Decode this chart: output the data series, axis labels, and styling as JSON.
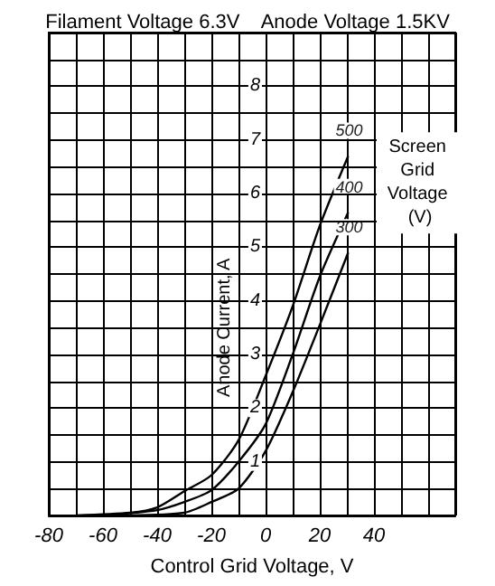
{
  "chart_data": {
    "type": "line",
    "title": "Filament Voltage 6.3V    Anode Voltage 1.5KV",
    "xlabel": "Control Grid Voltage, V",
    "ylabel": "Anode Current, A",
    "legend_title": "Screen Grid Voltage (V)",
    "xlim": [
      -80,
      70
    ],
    "ylim": [
      0,
      9
    ],
    "xticks": [
      -80,
      {
        "value": -70,
        "label": null
      },
      -60,
      {
        "value": -50,
        "label": null
      },
      -40,
      {
        "value": -30,
        "label": null
      },
      -20,
      {
        "value": -10,
        "label": null
      },
      0,
      {
        "value": 10,
        "label": null
      },
      20,
      {
        "value": 30,
        "label": null
      },
      40,
      {
        "value": 50,
        "label": null
      },
      {
        "value": 60,
        "label": null
      },
      {
        "value": 70,
        "label": null
      }
    ],
    "yticks": [
      {
        "value": 0,
        "label": null
      },
      {
        "value": 0.5,
        "label": null
      },
      1,
      {
        "value": 1.5,
        "label": null
      },
      2,
      {
        "value": 2.5,
        "label": null
      },
      3,
      {
        "value": 3.5,
        "label": null
      },
      4,
      {
        "value": 4.5,
        "label": null
      },
      5,
      {
        "value": 5.5,
        "label": null
      },
      6,
      {
        "value": 6.5,
        "label": null
      },
      7,
      {
        "value": 7.5,
        "label": null
      },
      8,
      {
        "value": 8.5,
        "label": null
      },
      {
        "value": 9,
        "label": null
      }
    ],
    "grid": true,
    "legend": false,
    "marker": "none",
    "line_style": "solid",
    "series": [
      {
        "name": "500",
        "color": "#000000",
        "x": [
          -70,
          -50,
          -40,
          -30,
          -20,
          -10,
          0,
          10,
          20,
          30.5
        ],
        "values": [
          0,
          0.05,
          0.15,
          0.45,
          0.75,
          1.4,
          2.6,
          3.9,
          5.4,
          6.7
        ]
      },
      {
        "name": "400",
        "color": "#000000",
        "x": [
          -60,
          -40,
          -30,
          -20,
          -10,
          0,
          10,
          20,
          30.5
        ],
        "values": [
          0,
          0.1,
          0.25,
          0.47,
          1.0,
          1.7,
          3.0,
          4.45,
          5.65
        ]
      },
      {
        "name": "300",
        "color": "#000000",
        "x": [
          -50,
          -30,
          -20,
          -10,
          0,
          10,
          20,
          30.5
        ],
        "values": [
          0,
          0.05,
          0.25,
          0.5,
          1.2,
          2.3,
          3.55,
          4.9
        ]
      }
    ]
  }
}
